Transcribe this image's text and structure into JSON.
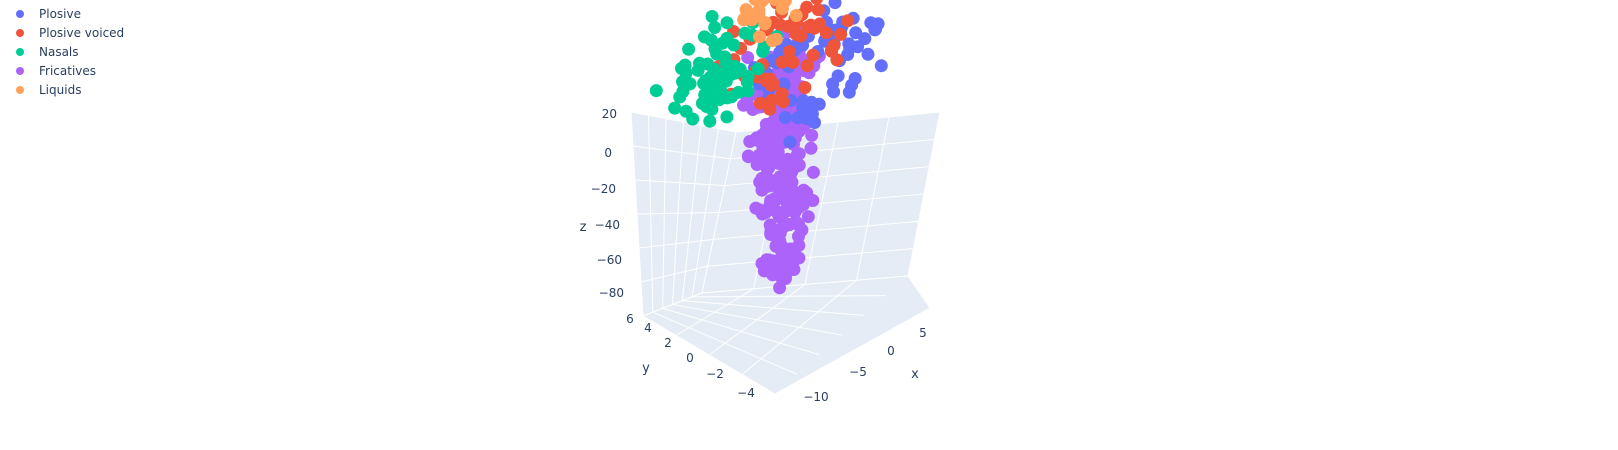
{
  "chart_data": {
    "type": "scatter",
    "dimensions": 3,
    "grid": true,
    "legend_placement": "top-left",
    "axes": {
      "x": {
        "label": "x",
        "ticks": [
          "−10",
          "−5",
          "0",
          "5"
        ],
        "range": [
          -12,
          7
        ]
      },
      "y": {
        "label": "y",
        "ticks": [
          "−4",
          "−2",
          "0",
          "2",
          "4",
          "6"
        ],
        "range": [
          -5,
          7
        ]
      },
      "z": {
        "label": "z",
        "ticks": [
          "−80",
          "−60",
          "−40",
          "−20",
          "0",
          "20"
        ],
        "range": [
          -95,
          25
        ]
      }
    },
    "series": [
      {
        "name": "Plosive",
        "color": "#636efa",
        "approx_points": [
          [
            -8,
            1,
            -2
          ],
          [
            -4,
            0,
            2
          ],
          [
            0,
            0,
            3
          ],
          [
            3,
            1,
            5
          ],
          [
            5,
            0,
            2
          ],
          [
            6,
            2,
            0
          ],
          [
            2,
            3,
            6
          ],
          [
            -1,
            -1,
            -18
          ],
          [
            -2,
            0,
            -28
          ],
          [
            1,
            2,
            10
          ]
        ]
      },
      {
        "name": "Plosive voiced",
        "color": "#ef553b",
        "approx_points": [
          [
            -10,
            2,
            0
          ],
          [
            -6,
            1,
            8
          ],
          [
            -3,
            0,
            10
          ],
          [
            0,
            1,
            12
          ],
          [
            2,
            2,
            9
          ],
          [
            4,
            1,
            6
          ],
          [
            6,
            0,
            1
          ],
          [
            -1,
            0,
            15
          ],
          [
            1,
            -1,
            7
          ]
        ]
      },
      {
        "name": "Nasals",
        "color": "#00cc96",
        "approx_points": [
          [
            -10,
            3,
            2
          ],
          [
            -9,
            4,
            6
          ],
          [
            -8,
            2,
            0
          ],
          [
            -7,
            3,
            12
          ],
          [
            -6,
            4,
            -2
          ],
          [
            -5,
            2,
            5
          ],
          [
            -4,
            3,
            18
          ],
          [
            -3,
            2,
            3
          ],
          [
            -2,
            3,
            0
          ],
          [
            -1,
            2,
            8
          ]
        ]
      },
      {
        "name": "Fricatives",
        "color": "#ab63fa",
        "approx_points": [
          [
            -2,
            0,
            -5
          ],
          [
            -1,
            1,
            -15
          ],
          [
            0,
            0,
            -25
          ],
          [
            1,
            -1,
            -35
          ],
          [
            -1,
            0,
            -45
          ],
          [
            0,
            1,
            -55
          ],
          [
            1,
            0,
            -65
          ],
          [
            0,
            -1,
            -75
          ],
          [
            0,
            0,
            -88
          ],
          [
            -3,
            1,
            -60
          ],
          [
            2,
            0,
            -40
          ]
        ]
      },
      {
        "name": "Liquids",
        "color": "#ffa15a",
        "approx_points": [
          [
            -3,
            2,
            18
          ],
          [
            -2,
            3,
            22
          ],
          [
            -1,
            2,
            15
          ],
          [
            0,
            3,
            20
          ],
          [
            1,
            2,
            16
          ],
          [
            2,
            1,
            12
          ]
        ]
      }
    ]
  }
}
